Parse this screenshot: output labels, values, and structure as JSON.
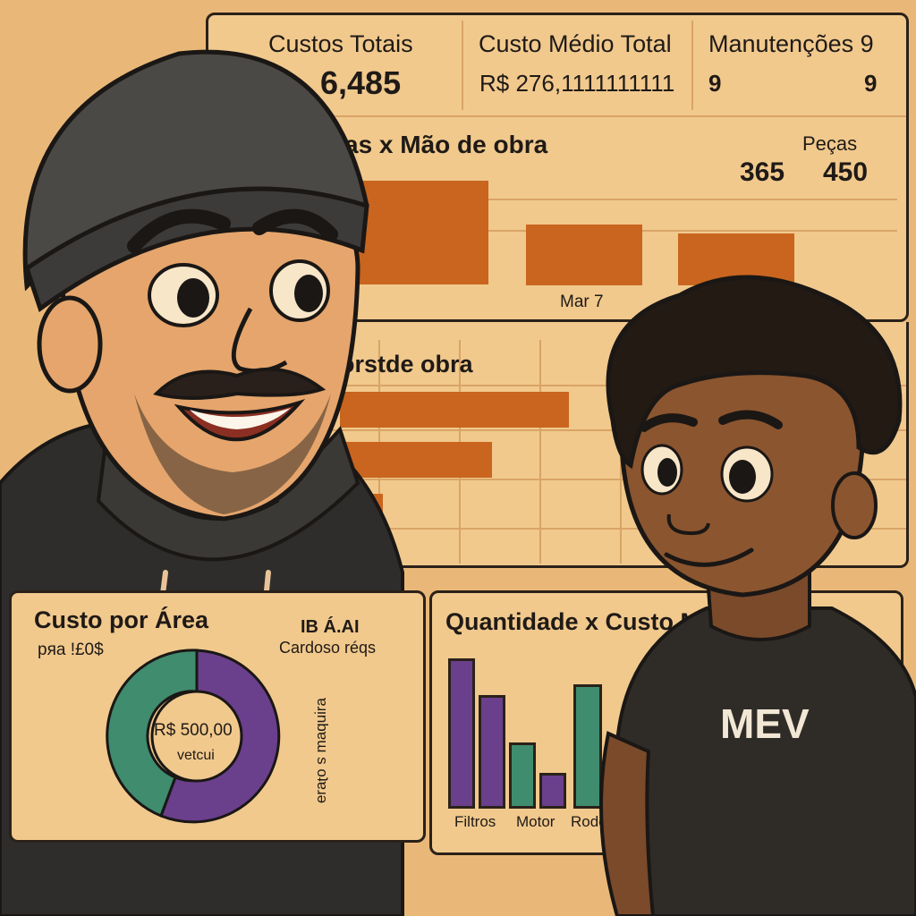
{
  "kpis": [
    {
      "label": "Custos Totais",
      "value": "6,485"
    },
    {
      "label": "Custo Médio Total",
      "value": "R$ 276,1111111111"
    },
    {
      "label": "Manutenções 9",
      "value": "9",
      "value2": "9"
    }
  ],
  "chart1": {
    "title": "as x Mão de obra",
    "legend": "Peças",
    "value_a": "365",
    "value_b": "450",
    "xlabel": "Mar 7"
  },
  "chart2": {
    "title": "orstde obra"
  },
  "donut": {
    "title": "Custo por Área",
    "subtitle": "pяa !£0$",
    "legend_title": "IB Á.AI",
    "legend_item": "Cardoso réqs",
    "vertical_text": "ɐɹᴉnbɐɯ s oʇɐɹǝ",
    "center_value": "R$ 500,00",
    "center_label": "vetcui",
    "colors": {
      "purple": "#6a3f8c",
      "green": "#3f8c6f"
    }
  },
  "qty_chart": {
    "title": "Quantidade x Custo M",
    "categories": [
      "Filtros",
      "Motor",
      "Rodes"
    ]
  },
  "shirt_text": "MEV",
  "chart_data": [
    {
      "type": "bar",
      "title": "Custo por Área",
      "series_note": "donut",
      "categories": [
        "purple",
        "green"
      ],
      "values": [
        60,
        40
      ]
    },
    {
      "type": "bar",
      "title": "Quantidade x Custo M",
      "categories": [
        "Filtros",
        "Motor",
        "Rodes"
      ],
      "series": [
        {
          "name": "purple",
          "values": [
            165,
            125,
            38
          ]
        },
        {
          "name": "green",
          "values": [
            0,
            70,
            135
          ]
        }
      ]
    }
  ]
}
